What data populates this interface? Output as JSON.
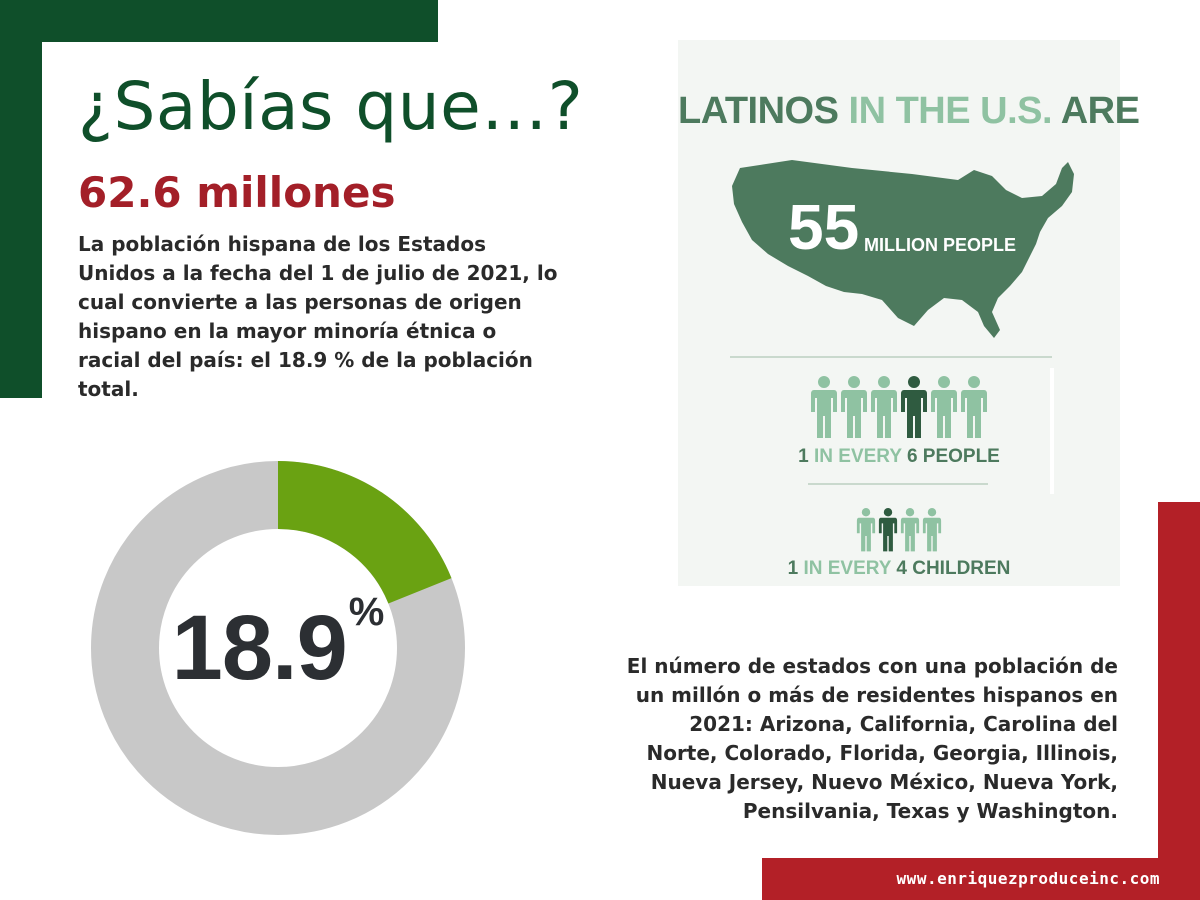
{
  "header": {
    "title": "¿Sabías que…?"
  },
  "stat_block": {
    "big_number": "62.6 millones",
    "description": "La población hispana de los Estados Unidos a la fecha del 1 de julio de 2021, lo cual convierte a las personas de origen hispano en la mayor minoría étnica o racial del país: el 18.9 % de la población total."
  },
  "donut": {
    "value_text": "18.9",
    "unit": "%",
    "percent": 18.9,
    "highlight_color": "#6aa212",
    "track_color": "#c8c8c8"
  },
  "infographic": {
    "heading_part1": "LATINOS",
    "heading_part2": "IN THE U.S.",
    "heading_part3": "ARE",
    "map_number": "55",
    "map_subtitle": "MILLION PEOPLE",
    "stat1": {
      "a": "1",
      "b": "IN EVERY",
      "c": "6 PEOPLE"
    },
    "stat2": {
      "a": "1",
      "b": "IN EVERY",
      "c": "4 CHILDREN"
    },
    "people_highlight": 1,
    "people_total": 6,
    "children_highlight": 1,
    "children_total": 4,
    "dark_color": "#2f5b40",
    "light_color": "#8fc2a2",
    "map_color": "#4d7a5e"
  },
  "states_paragraph": "El número de estados con una población de un millón o más de residentes hispanos en 2021: Arizona, California, Carolina del Norte, Colorado, Florida, Georgia, Illinois, Nueva Jersey, Nuevo México, Nueva York, Pensilvania, Texas y Washington.",
  "footer": {
    "website": "www.enriquezproduceinc.com"
  },
  "colors": {
    "brand_green": "#0f4f2a",
    "brand_red": "#b32027",
    "accent_red_text": "#a31f28"
  }
}
